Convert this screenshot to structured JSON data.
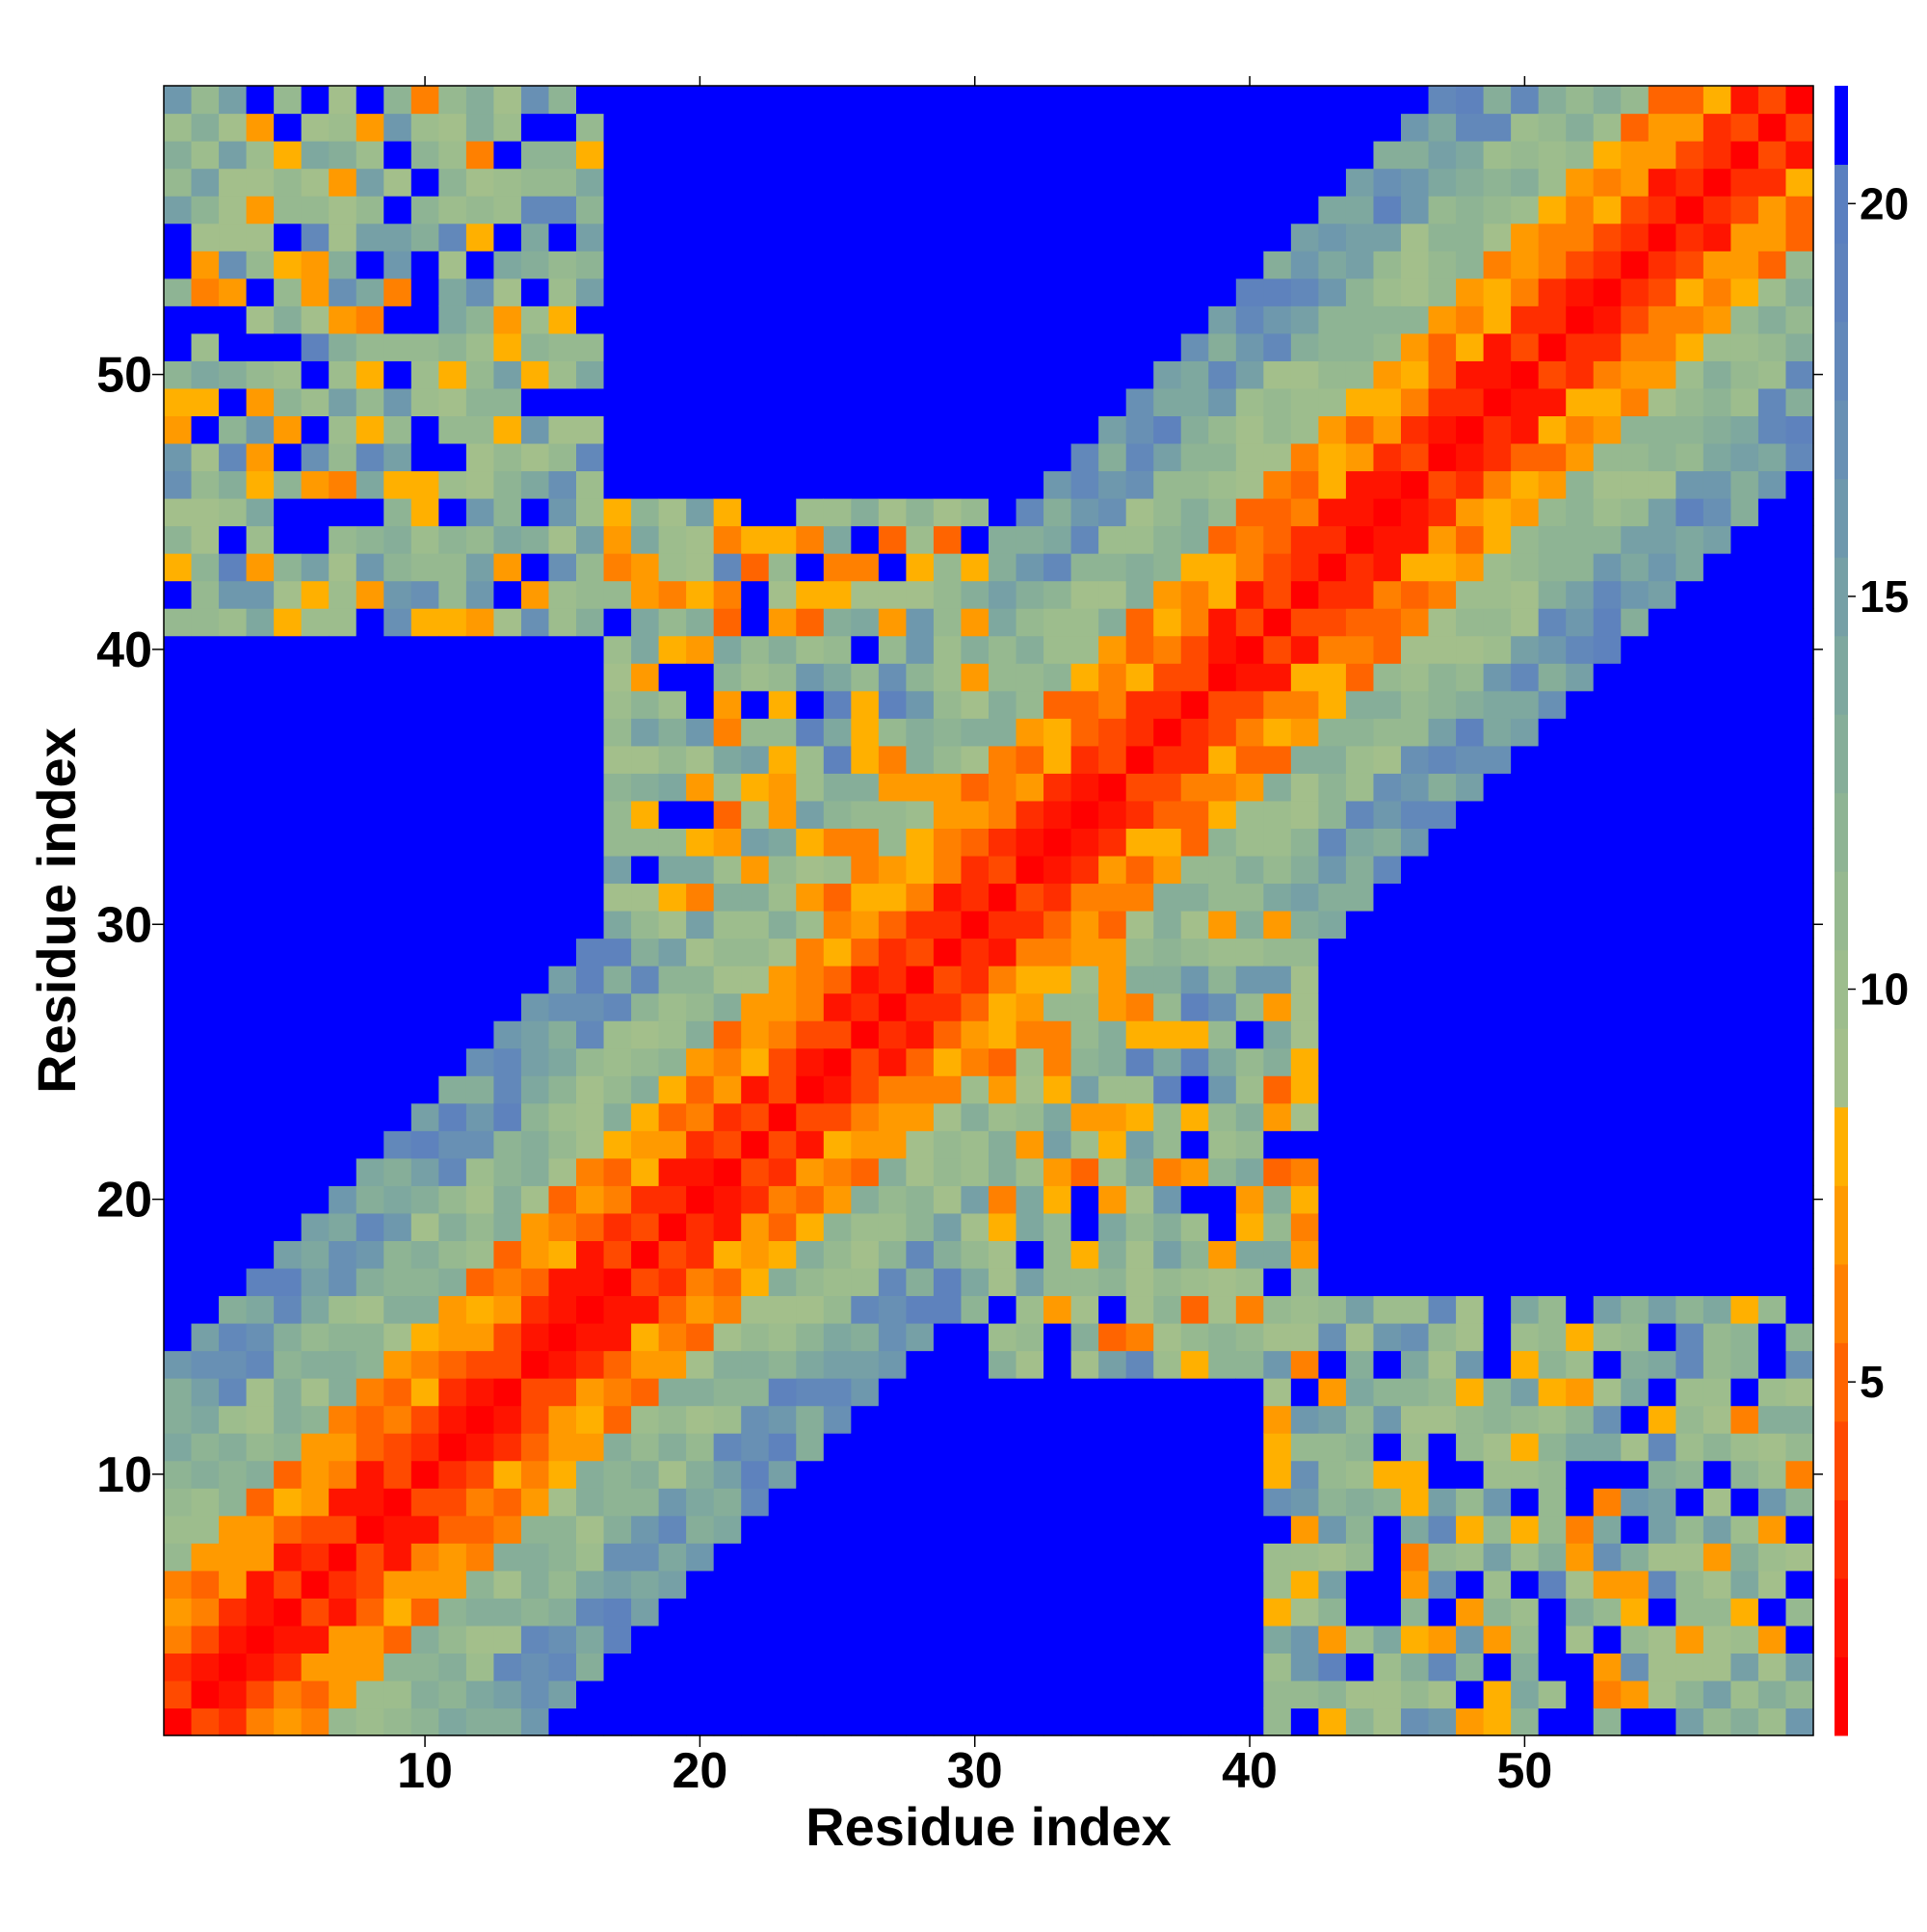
{
  "chart_data": {
    "type": "heatmap",
    "title": "",
    "xlabel": "Residue index",
    "ylabel": "Residue index",
    "n": 60,
    "x_range": [
      0.5,
      60.5
    ],
    "y_range": [
      0.5,
      60.5
    ],
    "x_ticks": [
      10,
      20,
      30,
      40,
      50
    ],
    "y_ticks": [
      10,
      20,
      30,
      40,
      50
    ],
    "x_tick_labels": [
      "10",
      "20",
      "30",
      "40",
      "50"
    ],
    "y_tick_labels": [
      "10",
      "20",
      "30",
      "40",
      "50"
    ],
    "colorbar": {
      "range": [
        0.5,
        21.5
      ],
      "ticks": [
        5,
        10,
        15,
        20
      ],
      "tick_labels": [
        "5",
        "10",
        "15",
        "20"
      ],
      "colors": [
        {
          "from": 0.5,
          "to": 1.5,
          "color": "#ff0000"
        },
        {
          "from": 1.5,
          "to": 2.5,
          "color": "#ff1400"
        },
        {
          "from": 2.5,
          "to": 3.5,
          "color": "#ff2e00"
        },
        {
          "from": 3.5,
          "to": 4.5,
          "color": "#ff4a00"
        },
        {
          "from": 4.5,
          "to": 5.5,
          "color": "#ff6400"
        },
        {
          "from": 5.5,
          "to": 6.5,
          "color": "#ff8000"
        },
        {
          "from": 6.5,
          "to": 7.5,
          "color": "#ff9a00"
        },
        {
          "from": 7.5,
          "to": 8.5,
          "color": "#ffb000"
        },
        {
          "from": 8.5,
          "to": 9.5,
          "color": "#a3bf8b"
        },
        {
          "from": 9.5,
          "to": 10.5,
          "color": "#9dbd8d"
        },
        {
          "from": 10.5,
          "to": 11.5,
          "color": "#96b990"
        },
        {
          "from": 11.5,
          "to": 12.5,
          "color": "#8eb494"
        },
        {
          "from": 12.5,
          "to": 13.5,
          "color": "#86ae99"
        },
        {
          "from": 13.5,
          "to": 14.5,
          "color": "#7ea89f"
        },
        {
          "from": 14.5,
          "to": 15.5,
          "color": "#76a0a6"
        },
        {
          "from": 15.5,
          "to": 16.5,
          "color": "#6e98ad"
        },
        {
          "from": 16.5,
          "to": 17.5,
          "color": "#6890b4"
        },
        {
          "from": 17.5,
          "to": 18.5,
          "color": "#6288ba"
        },
        {
          "from": 18.5,
          "to": 19.5,
          "color": "#5e82bd"
        },
        {
          "from": 19.5,
          "to": 20.5,
          "color": "#5a7fc0"
        },
        {
          "from": 20.5,
          "to": 21.5,
          "color": "#0000ff"
        }
      ]
    },
    "matrix_rule": "symmetric distance map: d(i,j) = 0 for i=j; |i-j|<=2 -> 1-4; 3-5 -> 5-8; 6-9 -> 9-13; 10-13 -> 14-20; larger -> >20 except contact patches",
    "contact_patches": [
      {
        "i_range": [
          1,
          16
        ],
        "j_range": [
          41,
          60
        ],
        "value_range": [
          6,
          20
        ]
      },
      {
        "i_range": [
          17,
          30
        ],
        "j_range": [
          30,
          45
        ],
        "value_range": [
          5,
          18
        ]
      },
      {
        "i_range": [
          30,
          42
        ],
        "j_range": [
          14,
          30
        ],
        "value_range": [
          5,
          18
        ]
      },
      {
        "i_range": [
          41,
          60
        ],
        "j_range": [
          1,
          16
        ],
        "value_range": [
          6,
          20
        ]
      }
    ],
    "grid": false,
    "legend": "colorbar-right"
  }
}
